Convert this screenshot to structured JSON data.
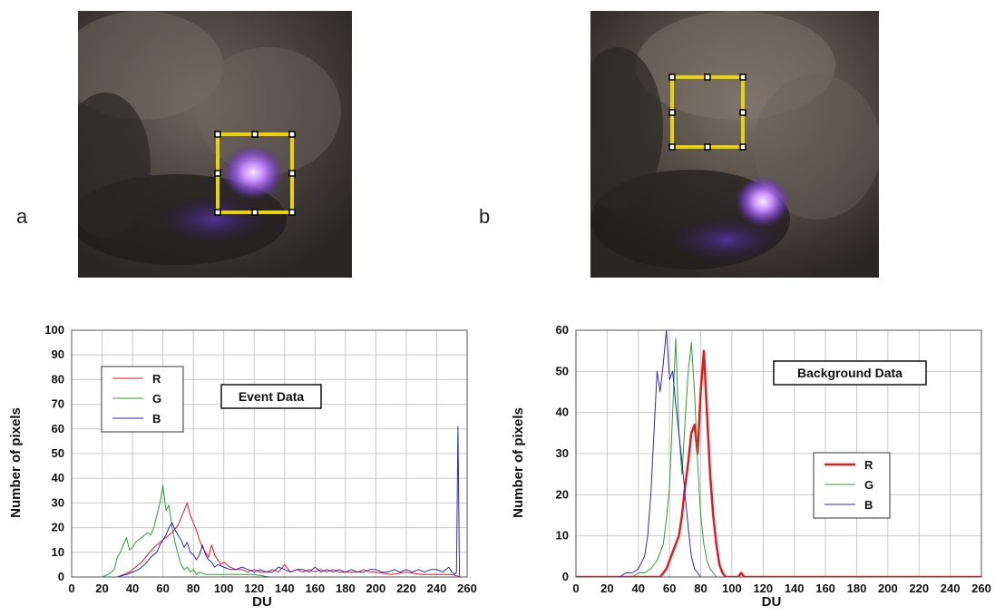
{
  "panels": [
    {
      "letter": "a"
    },
    {
      "letter": "b"
    }
  ],
  "colors": {
    "R": "#e41a1c",
    "G": "#2ca02c",
    "B": "#2929c8",
    "roi": "#e8d20a",
    "glow": "#b37cff"
  },
  "chart_data": [
    {
      "type": "line",
      "annotation": "Event Data",
      "xlabel": "DU",
      "ylabel": "Number of pixels",
      "xlim": [
        0,
        260
      ],
      "ylim": [
        0,
        100
      ],
      "xticks": [
        "0",
        "20",
        "40",
        "60",
        "80",
        "100",
        "120",
        "140",
        "160",
        "180",
        "200",
        "220",
        "240",
        "260"
      ],
      "yticks": [
        "0",
        "10",
        "20",
        "30",
        "40",
        "50",
        "60",
        "70",
        "80",
        "90",
        "100"
      ],
      "grid": true,
      "legend_position": "top-left",
      "series": [
        {
          "name": "R",
          "color": "#e41a1c",
          "width": 1,
          "points": [
            [
              0,
              0
            ],
            [
              30,
              0
            ],
            [
              34,
              1
            ],
            [
              38,
              2
            ],
            [
              42,
              4
            ],
            [
              46,
              6
            ],
            [
              50,
              9
            ],
            [
              54,
              12
            ],
            [
              58,
              14
            ],
            [
              62,
              16
            ],
            [
              66,
              18
            ],
            [
              70,
              21
            ],
            [
              72,
              24
            ],
            [
              74,
              27
            ],
            [
              76,
              30
            ],
            [
              78,
              25
            ],
            [
              80,
              22
            ],
            [
              82,
              19
            ],
            [
              84,
              15
            ],
            [
              86,
              12
            ],
            [
              88,
              10
            ],
            [
              90,
              8
            ],
            [
              92,
              13
            ],
            [
              94,
              9
            ],
            [
              96,
              7
            ],
            [
              98,
              5
            ],
            [
              100,
              6
            ],
            [
              104,
              4
            ],
            [
              108,
              3
            ],
            [
              112,
              3
            ],
            [
              116,
              2
            ],
            [
              120,
              3
            ],
            [
              124,
              2
            ],
            [
              128,
              2
            ],
            [
              132,
              3
            ],
            [
              136,
              2
            ],
            [
              140,
              5
            ],
            [
              144,
              2
            ],
            [
              148,
              3
            ],
            [
              152,
              2
            ],
            [
              156,
              3
            ],
            [
              160,
              2
            ],
            [
              164,
              3
            ],
            [
              168,
              2
            ],
            [
              172,
              3
            ],
            [
              176,
              2
            ],
            [
              180,
              2
            ],
            [
              184,
              2
            ],
            [
              188,
              2
            ],
            [
              192,
              3
            ],
            [
              196,
              2
            ],
            [
              200,
              2
            ],
            [
              210,
              1
            ],
            [
              220,
              2
            ],
            [
              230,
              1
            ],
            [
              240,
              1
            ],
            [
              250,
              1
            ],
            [
              256,
              0
            ],
            [
              260,
              0
            ]
          ]
        },
        {
          "name": "G",
          "color": "#2ca02c",
          "width": 1,
          "points": [
            [
              0,
              0
            ],
            [
              20,
              0
            ],
            [
              24,
              1
            ],
            [
              28,
              3
            ],
            [
              30,
              8
            ],
            [
              32,
              10
            ],
            [
              34,
              13
            ],
            [
              36,
              16
            ],
            [
              38,
              11
            ],
            [
              40,
              12
            ],
            [
              42,
              14
            ],
            [
              44,
              15
            ],
            [
              46,
              16
            ],
            [
              48,
              17
            ],
            [
              50,
              18
            ],
            [
              52,
              17
            ],
            [
              54,
              20
            ],
            [
              56,
              25
            ],
            [
              58,
              30
            ],
            [
              60,
              37
            ],
            [
              62,
              27
            ],
            [
              64,
              29
            ],
            [
              66,
              20
            ],
            [
              68,
              14
            ],
            [
              70,
              9
            ],
            [
              72,
              5
            ],
            [
              74,
              3
            ],
            [
              76,
              4
            ],
            [
              78,
              2
            ],
            [
              80,
              3
            ],
            [
              82,
              1
            ],
            [
              84,
              2
            ],
            [
              88,
              1
            ],
            [
              92,
              1
            ],
            [
              100,
              1
            ],
            [
              110,
              1
            ],
            [
              120,
              1
            ],
            [
              130,
              0
            ],
            [
              260,
              0
            ]
          ]
        },
        {
          "name": "B",
          "color": "#2929c8",
          "width": 1,
          "points": [
            [
              0,
              0
            ],
            [
              30,
              0
            ],
            [
              36,
              1
            ],
            [
              40,
              2
            ],
            [
              44,
              3
            ],
            [
              48,
              5
            ],
            [
              52,
              8
            ],
            [
              56,
              10
            ],
            [
              58,
              13
            ],
            [
              60,
              15
            ],
            [
              62,
              17
            ],
            [
              64,
              20
            ],
            [
              66,
              22
            ],
            [
              68,
              19
            ],
            [
              70,
              17
            ],
            [
              72,
              15
            ],
            [
              74,
              12
            ],
            [
              76,
              14
            ],
            [
              78,
              10
            ],
            [
              80,
              9
            ],
            [
              82,
              7
            ],
            [
              84,
              9
            ],
            [
              86,
              13
            ],
            [
              88,
              9
            ],
            [
              90,
              7
            ],
            [
              92,
              6
            ],
            [
              94,
              4
            ],
            [
              96,
              5
            ],
            [
              100,
              4
            ],
            [
              104,
              3
            ],
            [
              108,
              3
            ],
            [
              112,
              4
            ],
            [
              116,
              3
            ],
            [
              120,
              2
            ],
            [
              124,
              3
            ],
            [
              128,
              2
            ],
            [
              132,
              2
            ],
            [
              136,
              4
            ],
            [
              140,
              3
            ],
            [
              144,
              2
            ],
            [
              148,
              3
            ],
            [
              152,
              3
            ],
            [
              156,
              2
            ],
            [
              160,
              4
            ],
            [
              164,
              2
            ],
            [
              168,
              3
            ],
            [
              172,
              2
            ],
            [
              176,
              3
            ],
            [
              180,
              2
            ],
            [
              184,
              3
            ],
            [
              188,
              2
            ],
            [
              192,
              2
            ],
            [
              196,
              3
            ],
            [
              200,
              3
            ],
            [
              204,
              2
            ],
            [
              208,
              2
            ],
            [
              212,
              3
            ],
            [
              216,
              2
            ],
            [
              220,
              3
            ],
            [
              224,
              2
            ],
            [
              228,
              3
            ],
            [
              232,
              2
            ],
            [
              236,
              3
            ],
            [
              240,
              3
            ],
            [
              244,
              2
            ],
            [
              248,
              4
            ],
            [
              250,
              2
            ],
            [
              252,
              1
            ],
            [
              253,
              2
            ],
            [
              254,
              61
            ],
            [
              255,
              0
            ],
            [
              260,
              0
            ]
          ]
        }
      ]
    },
    {
      "type": "line",
      "annotation": "Background Data",
      "xlabel": "DU",
      "ylabel": "Number of pixels",
      "xlim": [
        0,
        260
      ],
      "ylim": [
        0,
        60
      ],
      "xticks": [
        "0",
        "20",
        "40",
        "60",
        "80",
        "100",
        "120",
        "140",
        "160",
        "180",
        "200",
        "220",
        "240",
        "260"
      ],
      "yticks": [
        "0",
        "10",
        "20",
        "30",
        "40",
        "50",
        "60"
      ],
      "grid": true,
      "legend_position": "center-right",
      "series": [
        {
          "name": "R",
          "color": "#e41a1c",
          "width": 2.5,
          "points": [
            [
              0,
              0
            ],
            [
              40,
              0
            ],
            [
              50,
              0
            ],
            [
              54,
              0
            ],
            [
              56,
              1
            ],
            [
              58,
              2
            ],
            [
              60,
              4
            ],
            [
              62,
              6
            ],
            [
              64,
              8
            ],
            [
              66,
              10
            ],
            [
              68,
              15
            ],
            [
              70,
              22
            ],
            [
              72,
              28
            ],
            [
              74,
              35
            ],
            [
              76,
              37
            ],
            [
              78,
              30
            ],
            [
              80,
              45
            ],
            [
              82,
              55
            ],
            [
              84,
              40
            ],
            [
              86,
              25
            ],
            [
              88,
              15
            ],
            [
              90,
              8
            ],
            [
              92,
              3
            ],
            [
              94,
              1
            ],
            [
              96,
              0
            ],
            [
              100,
              0
            ],
            [
              104,
              0
            ],
            [
              106,
              1
            ],
            [
              108,
              0
            ],
            [
              260,
              0
            ]
          ]
        },
        {
          "name": "G",
          "color": "#2ca02c",
          "width": 1,
          "points": [
            [
              0,
              0
            ],
            [
              36,
              0
            ],
            [
              40,
              1
            ],
            [
              44,
              1
            ],
            [
              48,
              2
            ],
            [
              52,
              4
            ],
            [
              56,
              8
            ],
            [
              58,
              14
            ],
            [
              60,
              22
            ],
            [
              62,
              40
            ],
            [
              64,
              58
            ],
            [
              66,
              35
            ],
            [
              68,
              25
            ],
            [
              70,
              38
            ],
            [
              72,
              50
            ],
            [
              74,
              57
            ],
            [
              76,
              45
            ],
            [
              78,
              28
            ],
            [
              80,
              15
            ],
            [
              82,
              8
            ],
            [
              84,
              4
            ],
            [
              86,
              2
            ],
            [
              88,
              1
            ],
            [
              90,
              0
            ],
            [
              260,
              0
            ]
          ]
        },
        {
          "name": "B",
          "color": "#2929c8",
          "width": 1,
          "points": [
            [
              0,
              0
            ],
            [
              28,
              0
            ],
            [
              32,
              1
            ],
            [
              36,
              1
            ],
            [
              40,
              2
            ],
            [
              44,
              5
            ],
            [
              46,
              10
            ],
            [
              48,
              20
            ],
            [
              50,
              35
            ],
            [
              52,
              50
            ],
            [
              54,
              45
            ],
            [
              56,
              52
            ],
            [
              58,
              60
            ],
            [
              60,
              48
            ],
            [
              62,
              50
            ],
            [
              64,
              42
            ],
            [
              66,
              35
            ],
            [
              68,
              28
            ],
            [
              70,
              20
            ],
            [
              72,
              12
            ],
            [
              74,
              5
            ],
            [
              76,
              2
            ],
            [
              78,
              1
            ],
            [
              80,
              0
            ],
            [
              260,
              0
            ]
          ]
        }
      ]
    }
  ]
}
